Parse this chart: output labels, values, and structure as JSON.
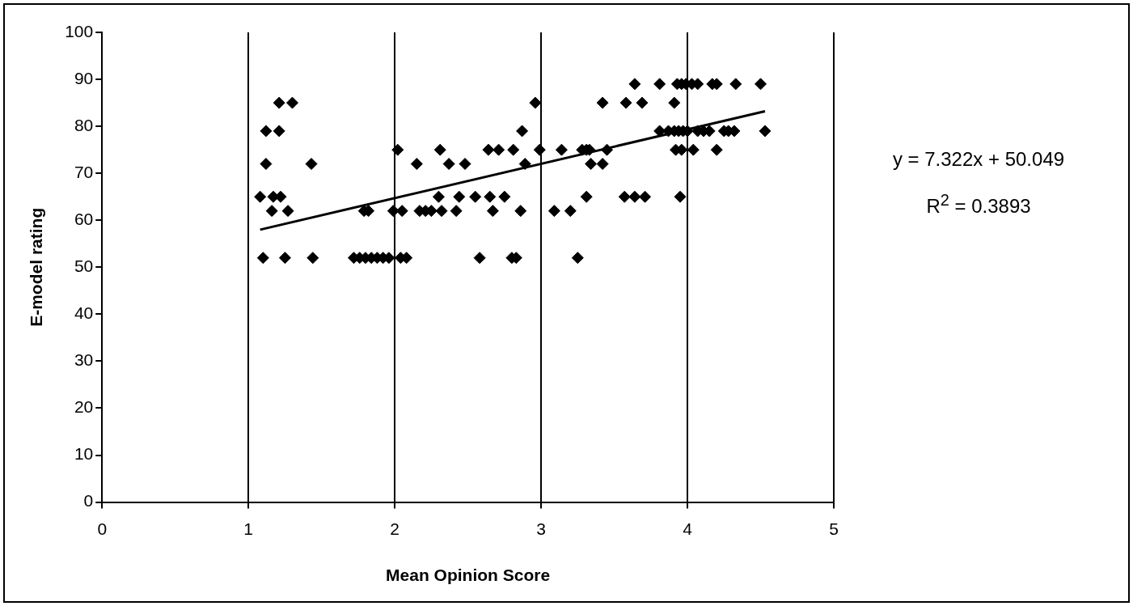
{
  "chart_data": {
    "type": "scatter",
    "xlabel": "Mean Opinion Score",
    "ylabel": "E-model rating",
    "xlim": [
      0,
      5
    ],
    "xticks": [
      0,
      1,
      2,
      3,
      4,
      5
    ],
    "ylim": [
      0,
      100
    ],
    "yticks": [
      0,
      10,
      20,
      30,
      40,
      50,
      60,
      70,
      80,
      90,
      100
    ],
    "grid": "x",
    "marker": "diamond",
    "annotations": [
      "y = 7.322x + 50.049",
      "R$^{2}$ = 0.3893"
    ],
    "series": [
      {
        "color": "#000000",
        "x": [
          1.08,
          1.1,
          1.12,
          1.12,
          1.16,
          1.17,
          1.21,
          1.21,
          1.22,
          1.25,
          1.27,
          1.3,
          1.43,
          1.44,
          1.72,
          1.76,
          1.8,
          1.84,
          1.88,
          1.92,
          1.96,
          2.04,
          2.08,
          1.79,
          1.82,
          1.99,
          2.05,
          2.17,
          2.21,
          2.25,
          2.32,
          2.42,
          2.67,
          2.86,
          3.09,
          3.2,
          2.02,
          2.31,
          2.64,
          2.71,
          2.81,
          2.99,
          3.14,
          3.28,
          3.31,
          3.33,
          3.45,
          2.15,
          2.37,
          2.48,
          2.89,
          3.34,
          3.42,
          2.3,
          2.44,
          2.55,
          2.65,
          2.75,
          3.31,
          2.58,
          2.8,
          2.83,
          3.25,
          2.96,
          3.42,
          3.58,
          3.69,
          3.91,
          2.87,
          3.64,
          3.81,
          3.93,
          3.96,
          3.99,
          4.03,
          4.07,
          4.17,
          4.2,
          4.33,
          4.5,
          3.81,
          3.87,
          3.91,
          3.94,
          3.97,
          4.0,
          4.07,
          4.11,
          4.15,
          4.25,
          4.28,
          4.32,
          4.53,
          3.92,
          3.96,
          4.04,
          4.2,
          3.57,
          3.64,
          3.71,
          3.95
        ],
        "values": [
          65,
          52,
          72,
          79,
          62,
          65,
          79,
          85,
          65,
          52,
          62,
          85,
          72,
          52,
          52,
          52,
          52,
          52,
          52,
          52,
          52,
          52,
          52,
          62,
          62,
          62,
          62,
          62,
          62,
          62,
          62,
          62,
          62,
          62,
          62,
          62,
          75,
          75,
          75,
          75,
          75,
          75,
          75,
          75,
          75,
          75,
          75,
          72,
          72,
          72,
          72,
          72,
          72,
          65,
          65,
          65,
          65,
          65,
          65,
          52,
          52,
          52,
          52,
          85,
          85,
          85,
          85,
          85,
          79,
          89,
          89,
          89,
          89,
          89,
          89,
          89,
          89,
          89,
          89,
          89,
          79,
          79,
          79,
          79,
          79,
          79,
          79,
          79,
          79,
          79,
          79,
          79,
          79,
          75,
          75,
          75,
          75,
          65,
          65,
          65,
          65
        ]
      },
      {
        "type": "line",
        "color": "#000000",
        "marker": "none",
        "x": [
          1.08,
          4.53
        ],
        "values": [
          58,
          83.2
        ]
      }
    ]
  }
}
